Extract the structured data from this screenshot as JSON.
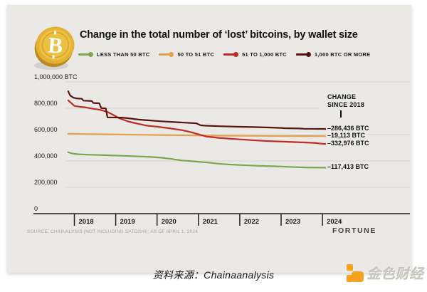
{
  "page": {
    "background": "#ffffff",
    "card_background": "#eae9e5",
    "gridline_color": "#d7d5d0",
    "axis_color": "#22211f"
  },
  "header": {
    "title": "Change in the total number of ‘lost’ bitcoins, by wallet size",
    "coin_glyph": "B"
  },
  "chart_data": {
    "type": "line",
    "title": "Change in the total number of ‘lost’ bitcoins, by wallet size",
    "unit": "BTC",
    "grid": true,
    "legend_position": "top",
    "x_axis": {
      "labels": [
        "2018",
        "2019",
        "2020",
        "2021",
        "2022",
        "2023",
        "2024"
      ],
      "range_years": [
        2017.85,
        2024.35
      ]
    },
    "y_axis": {
      "ticks": [
        0,
        200000,
        400000,
        600000,
        800000,
        1000000
      ],
      "labels": [
        "0",
        "200,000",
        "400,000",
        "600,000",
        "800,000",
        "1,000,000 BTC"
      ],
      "range": [
        0,
        1080000
      ]
    },
    "annotation": {
      "header_line1": "CHANGE",
      "header_line2": "SINCE 2018"
    },
    "series": [
      {
        "name": "LESS THAN 50 BTC",
        "color": "#7ea64d",
        "change_since_2018": "–117,413 BTC",
        "points": [
          [
            2017.85,
            466000
          ],
          [
            2017.95,
            456000
          ],
          [
            2018.1,
            451000
          ],
          [
            2018.4,
            447000
          ],
          [
            2018.8,
            443000
          ],
          [
            2019.2,
            439000
          ],
          [
            2019.6,
            434000
          ],
          [
            2019.85,
            430000
          ],
          [
            2020.1,
            425000
          ],
          [
            2020.35,
            415000
          ],
          [
            2020.6,
            404000
          ],
          [
            2020.85,
            398000
          ],
          [
            2021.1,
            391000
          ],
          [
            2021.2,
            389000
          ],
          [
            2021.45,
            380000
          ],
          [
            2021.7,
            374000
          ],
          [
            2022.0,
            369000
          ],
          [
            2022.4,
            364000
          ],
          [
            2022.8,
            360000
          ],
          [
            2023.2,
            355000
          ],
          [
            2023.6,
            351000
          ],
          [
            2024.0,
            349000
          ],
          [
            2024.15,
            348587
          ]
        ]
      },
      {
        "name": "50 TO 51 BTC",
        "color": "#e2a14b",
        "change_since_2018": "–19,113 BTC",
        "points": [
          [
            2017.85,
            607000
          ],
          [
            2018.5,
            603000
          ],
          [
            2019.5,
            599000
          ],
          [
            2020.5,
            595000
          ],
          [
            2021.5,
            592000
          ],
          [
            2022.5,
            590000
          ],
          [
            2023.5,
            588500
          ],
          [
            2024.15,
            587887
          ]
        ]
      },
      {
        "name": "51 TO 1,000 BTC",
        "color": "#c02a27",
        "change_since_2018": "–332,976 BTC",
        "points": [
          [
            2017.85,
            860000
          ],
          [
            2017.92,
            840000
          ],
          [
            2018.0,
            818000
          ],
          [
            2018.12,
            812000
          ],
          [
            2018.28,
            806000
          ],
          [
            2018.45,
            796000
          ],
          [
            2018.62,
            788000
          ],
          [
            2018.8,
            772000
          ],
          [
            2018.95,
            748000
          ],
          [
            2019.1,
            722000
          ],
          [
            2019.3,
            700000
          ],
          [
            2019.5,
            685000
          ],
          [
            2019.75,
            668000
          ],
          [
            2020.0,
            660000
          ],
          [
            2020.3,
            648000
          ],
          [
            2020.6,
            634000
          ],
          [
            2020.8,
            620000
          ],
          [
            2021.0,
            602000
          ],
          [
            2021.2,
            585000
          ],
          [
            2021.5,
            575000
          ],
          [
            2021.9,
            566000
          ],
          [
            2022.3,
            558000
          ],
          [
            2022.7,
            551000
          ],
          [
            2023.1,
            546000
          ],
          [
            2023.5,
            541000
          ],
          [
            2023.8,
            537000
          ],
          [
            2024.0,
            531000
          ],
          [
            2024.15,
            527024
          ]
        ]
      },
      {
        "name": "1,000 BTC OR MORE",
        "color": "#571511",
        "change_since_2018": "–286,436 BTC",
        "points": [
          [
            2017.85,
            929000
          ],
          [
            2017.9,
            896000
          ],
          [
            2017.98,
            880000
          ],
          [
            2018.05,
            875000
          ],
          [
            2018.18,
            872000
          ],
          [
            2018.22,
            858000
          ],
          [
            2018.42,
            855000
          ],
          [
            2018.46,
            840000
          ],
          [
            2018.6,
            838000
          ],
          [
            2018.65,
            801000
          ],
          [
            2018.76,
            799000
          ],
          [
            2018.8,
            731000
          ],
          [
            2019.15,
            729000
          ],
          [
            2019.35,
            722000
          ],
          [
            2019.55,
            714000
          ],
          [
            2019.8,
            708000
          ],
          [
            2020.1,
            701000
          ],
          [
            2020.4,
            695000
          ],
          [
            2020.7,
            690000
          ],
          [
            2020.95,
            686000
          ],
          [
            2021.05,
            671000
          ],
          [
            2021.15,
            668000
          ],
          [
            2021.5,
            664000
          ],
          [
            2021.9,
            660000
          ],
          [
            2022.3,
            657000
          ],
          [
            2022.7,
            654000
          ],
          [
            2023.0,
            651000
          ],
          [
            2023.08,
            648500
          ],
          [
            2023.45,
            646500
          ],
          [
            2023.55,
            644500
          ],
          [
            2024.0,
            643000
          ],
          [
            2024.15,
            642564
          ]
        ]
      }
    ]
  },
  "footer": {
    "source": "SOURCE: CHAINALYSIS (NOT INCLUDING SATOSHI); AS OF APRIL 1, 2024",
    "brand": "FORTUNE"
  },
  "caption": {
    "text": "资料来源：Chainaanalysis",
    "logo_text": "金色财经"
  }
}
